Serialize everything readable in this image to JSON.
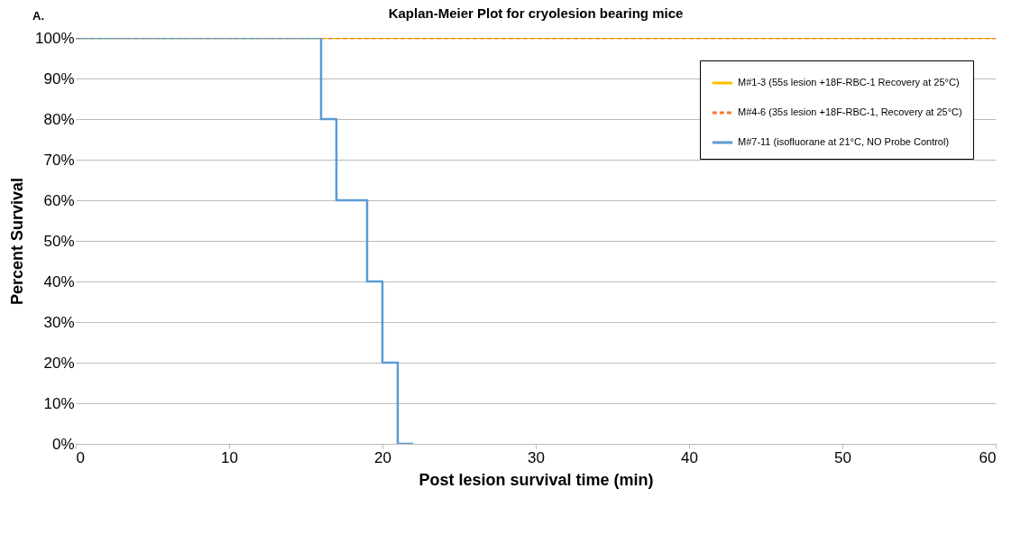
{
  "chart_data": {
    "type": "step",
    "title": "Kaplan-Meier Plot for cryolesion bearing mice",
    "xlabel": "Post lesion survival time (min)",
    "ylabel": "Percent Survival",
    "annotations": [
      "A."
    ],
    "xlim": [
      0,
      60
    ],
    "xticks": [
      0,
      10,
      20,
      30,
      40,
      50,
      60
    ],
    "ylim": [
      0,
      100
    ],
    "yticks": [
      {
        "value": 0,
        "label": "0%"
      },
      {
        "value": 10,
        "label": "10%"
      },
      {
        "value": 20,
        "label": "20%"
      },
      {
        "value": 30,
        "label": "30%"
      },
      {
        "value": 40,
        "label": "40%"
      },
      {
        "value": 50,
        "label": "50%"
      },
      {
        "value": 60,
        "label": "60%"
      },
      {
        "value": 70,
        "label": "70%"
      },
      {
        "value": 80,
        "label": "80%"
      },
      {
        "value": 90,
        "label": "90%"
      },
      {
        "value": 100,
        "label": "100%"
      }
    ],
    "grid": "y",
    "legend": "top right",
    "series": [
      {
        "name": "M#1-3 (55s lesion +18F-RBC-1 Recovery at 25°C)",
        "color": "#ffc000",
        "line_style": "solid",
        "x": [
          0,
          60
        ],
        "values": [
          100,
          100
        ]
      },
      {
        "name": "M#4-6 (35s lesion +18F-RBC-1, Recovery at 25°C)",
        "color": "#ed7d31",
        "line_style": "dashed",
        "x": [
          0,
          60
        ],
        "values": [
          100,
          100
        ]
      },
      {
        "name": "M#7-11 (isofluorane at 21°C, NO Probe Control)",
        "color": "#5b9bd5",
        "line_style": "solid",
        "x": [
          0,
          16,
          17,
          19,
          20,
          21,
          22
        ],
        "values": [
          100,
          80,
          60,
          40,
          20,
          0,
          0
        ]
      }
    ]
  }
}
